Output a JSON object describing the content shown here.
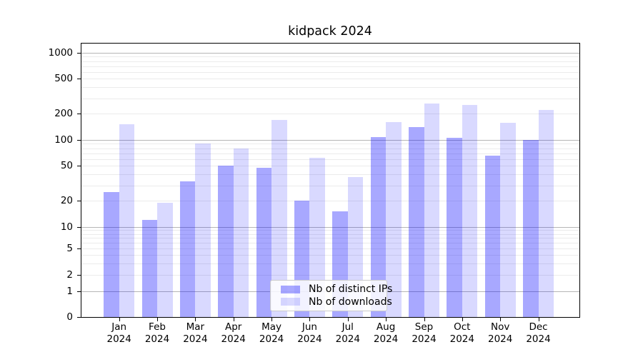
{
  "chart_data": {
    "type": "bar",
    "title": "kidpack 2024",
    "categories": [
      "Jan 2024",
      "Feb 2024",
      "Mar 2024",
      "Apr 2024",
      "May 2024",
      "Jun 2024",
      "Jul 2024",
      "Aug 2024",
      "Sep 2024",
      "Oct 2024",
      "Nov 2024",
      "Dec 2024"
    ],
    "x_tick_line1": [
      "Jan",
      "Feb",
      "Mar",
      "Apr",
      "May",
      "Jun",
      "Jul",
      "Aug",
      "Sep",
      "Oct",
      "Nov",
      "Dec"
    ],
    "x_tick_line2": "2024",
    "series": [
      {
        "name": "Nb of distinct IPs",
        "color_hex": "#a8a8fa",
        "fill": "rgba(0,0,255,0.34)",
        "values": [
          25,
          12,
          33,
          50,
          48,
          20,
          15,
          107,
          140,
          106,
          66,
          100
        ]
      },
      {
        "name": "Nb of downloads",
        "color_hex": "#d9d9fc",
        "fill": "rgba(0,0,255,0.15)",
        "values": [
          150,
          19,
          90,
          80,
          168,
          62,
          37,
          160,
          260,
          250,
          156,
          220
        ]
      }
    ],
    "yscale": "symlog",
    "yticks": [
      0,
      1,
      2,
      5,
      10,
      20,
      50,
      100,
      200,
      500,
      1000
    ],
    "ylim": [
      0,
      1300
    ],
    "xlabel": "",
    "ylabel": "",
    "grid": true,
    "grid_major_color": "#b6b6b6",
    "grid_minor_color": "#ebebeb",
    "legend_position": "lower center"
  }
}
